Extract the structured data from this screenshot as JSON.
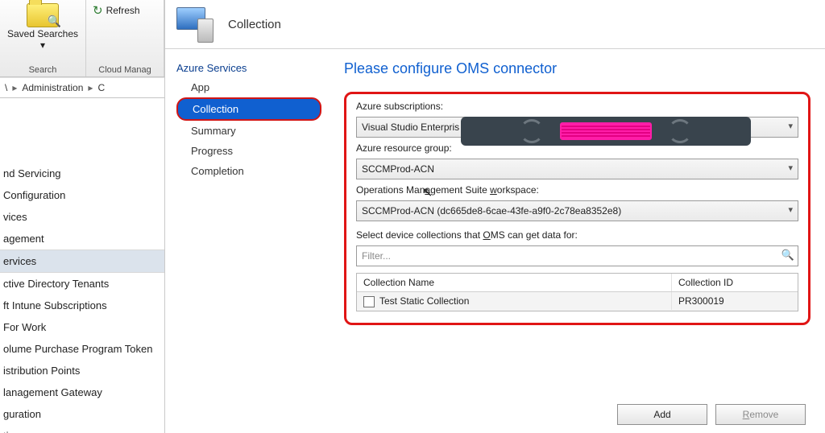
{
  "ribbon": {
    "refresh_label": "Refresh",
    "saved_searches_label": "Saved Searches ▾",
    "search_caption": "Search",
    "cloud_caption": "Cloud Manag"
  },
  "breadcrumb": {
    "seg1": "\\",
    "seg2": "Administration",
    "seg3": "C"
  },
  "nav_tree": [
    "nd Servicing",
    "Configuration",
    "vices",
    "agement",
    "ervices",
    "ctive Directory Tenants",
    "ft Intune Subscriptions",
    "For Work",
    "olume Purchase Program Token",
    "istribution Points",
    "lanagement Gateway",
    "guration",
    "tings"
  ],
  "nav_selected_index": 4,
  "wizard": {
    "header_title": "Collection",
    "steps_root": "Azure Services",
    "steps": [
      "App",
      "Collection",
      "Summary",
      "Progress",
      "Completion"
    ],
    "active_step_index": 1,
    "form_title": "Please configure OMS connector",
    "labels": {
      "subscriptions": "Azure subscriptions:",
      "subscriptions_value": "Visual Studio Enterpris",
      "resource_group": "Azure resource group:",
      "resource_group_value": "SCCMProd-ACN",
      "workspace": "Operations Management Suite workspace:",
      "workspace_value": "SCCMProd-ACN (dc665de8-6cae-43fe-a9f0-2c78ea8352e8)",
      "select_collections": "Select device collections that OMS can get data for:",
      "filter_placeholder": "Filter..."
    },
    "table": {
      "col_name": "Collection Name",
      "col_id": "Collection ID",
      "rows": [
        {
          "name": "Test Static Collection",
          "id": "PR300019"
        }
      ]
    },
    "buttons": {
      "add": "Add",
      "remove": "Remove"
    }
  },
  "annotation_colors": {
    "highlight_border": "#e01515"
  }
}
